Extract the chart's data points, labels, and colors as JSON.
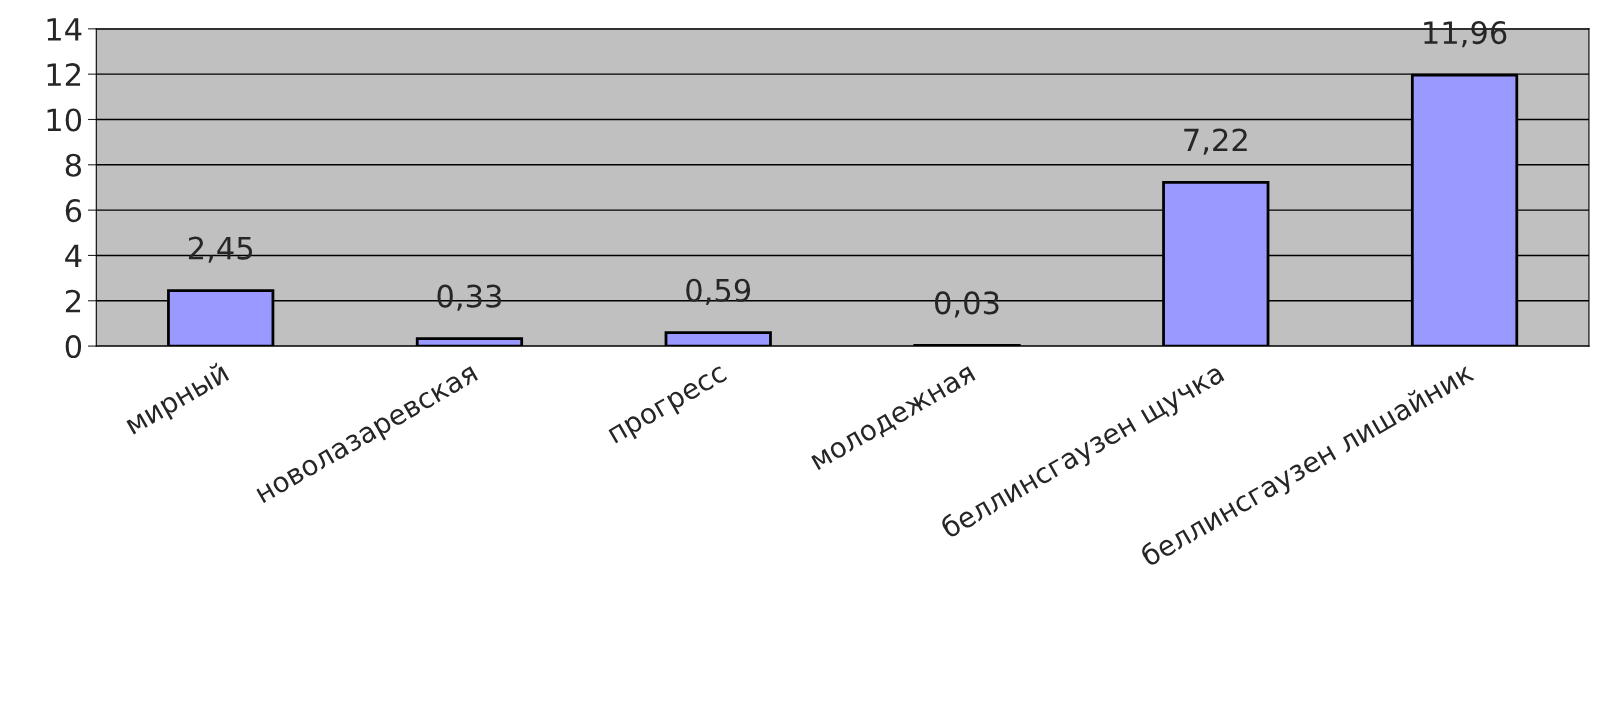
{
  "chart_data": {
    "type": "bar",
    "categories": [
      "мирный",
      "новолазаревская",
      "прогресс",
      "молодежная",
      "беллинсгаузен щучка",
      "беллинсгаузен лишайник"
    ],
    "values": [
      2.45,
      0.33,
      0.59,
      0.03,
      7.22,
      11.96
    ],
    "value_labels": [
      "2,45",
      "0,33",
      "0,59",
      "0,03",
      "7,22",
      "11,96"
    ],
    "color": "#9999ff",
    "ylim": [
      0,
      14
    ],
    "yticks": [
      0,
      2,
      4,
      6,
      8,
      10,
      12,
      14
    ],
    "grid": "y",
    "legend": false
  }
}
